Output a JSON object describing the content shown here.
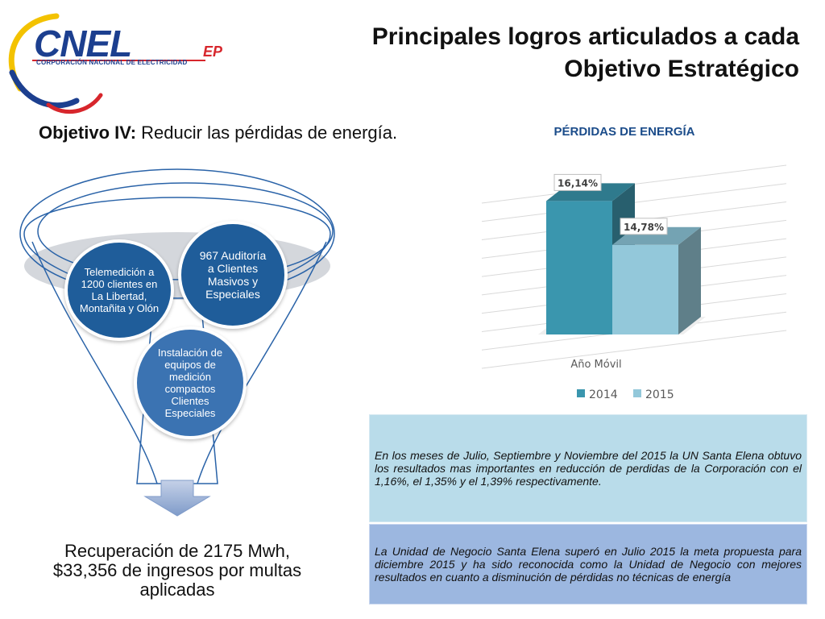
{
  "logo": {
    "brand": "CNEL",
    "suffix": "EP",
    "tagline": "CORPORACIÓN NACIONAL DE ELECTRICIDAD"
  },
  "title": {
    "line1": "Principales logros articulados a cada",
    "line2": "Objetivo Estratégico"
  },
  "objective": {
    "label": "Objetivo IV:",
    "text": " Reducir las pérdidas de energía."
  },
  "funnel": {
    "item1": "Telemedición a 1200 clientes en La Libertad, Montañita y Olón",
    "item2": "967 Auditoría a Clientes Masivos y Especiales",
    "item3": "Instalación de equipos de medición compactos Clientes Especiales",
    "result": "Recuperación de 2175 Mwh, $33,356 de ingresos por multas aplicadas"
  },
  "boxes": {
    "box1": "En los meses de Julio, Septiembre y Noviembre del 2015 la UN Santa Elena obtuvo los resultados mas importantes en reducción de perdidas de la Corporación con el 1,16%, el 1,35% y el 1,39% respectivamente.",
    "box2": "La Unidad de Negocio Santa Elena superó en Julio 2015 la meta propuesta para diciembre 2015 y ha sido reconocida como la Unidad de Negocio con mejores resultados en cuanto a disminución de pérdidas no técnicas de energía"
  },
  "colors": {
    "bar_2014": "#3a96ae",
    "bar_2015": "#93c8da",
    "title_blue": "#1b4c8a",
    "circle_blue": "#1f5d9a"
  },
  "chart_data": {
    "type": "bar",
    "title": "PÉRDIDAS DE ENERGÍA",
    "categories": [
      "Año Móvil"
    ],
    "xlabel": "",
    "ylabel": "",
    "series": [
      {
        "name": "2014",
        "values": [
          16.14
        ],
        "label": "16,14%"
      },
      {
        "name": "2015",
        "values": [
          14.78
        ],
        "label": "14,78%"
      }
    ],
    "ylim": [
      12,
      17
    ],
    "grid": true,
    "legend": "bottom",
    "style": "3d"
  }
}
